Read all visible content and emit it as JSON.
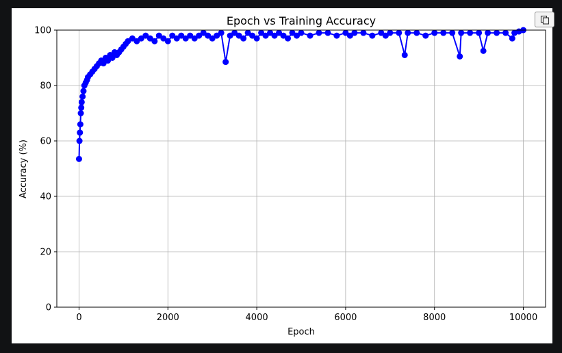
{
  "colors": {
    "series": "#0000ff",
    "grid": "#b0b0b0",
    "page_background": "#111214",
    "figure_background": "#ffffff"
  },
  "toolbar": {
    "copy_icon": "copy-icon"
  },
  "chart_data": {
    "type": "line",
    "title": "Epoch vs Training Accuracy",
    "xlabel": "Epoch",
    "ylabel": "Accuracy (%)",
    "xlim": [
      -500,
      10500
    ],
    "ylim": [
      0,
      100
    ],
    "xticks": [
      0,
      2000,
      4000,
      6000,
      8000,
      10000
    ],
    "yticks": [
      0,
      20,
      40,
      60,
      80,
      100
    ],
    "grid": true,
    "marker": "circle",
    "series": [
      {
        "name": "",
        "x": [
          0,
          10,
          20,
          30,
          40,
          50,
          60,
          80,
          100,
          120,
          150,
          180,
          200,
          250,
          300,
          350,
          400,
          450,
          500,
          550,
          600,
          650,
          700,
          750,
          800,
          850,
          900,
          950,
          1000,
          1050,
          1100,
          1200,
          1300,
          1400,
          1500,
          1600,
          1700,
          1800,
          1900,
          2000,
          2100,
          2200,
          2300,
          2400,
          2500,
          2600,
          2700,
          2800,
          2900,
          3000,
          3100,
          3200,
          3300,
          3400,
          3500,
          3600,
          3700,
          3800,
          3900,
          4000,
          4100,
          4200,
          4300,
          4400,
          4500,
          4600,
          4700,
          4800,
          4900,
          5000,
          5200,
          5400,
          5600,
          5800,
          6000,
          6100,
          6200,
          6400,
          6600,
          6800,
          6900,
          7000,
          7200,
          7330,
          7400,
          7600,
          7800,
          8000,
          8200,
          8400,
          8570,
          8600,
          8800,
          9000,
          9100,
          9200,
          9400,
          9600,
          9750,
          9800,
          9900,
          10000
        ],
        "y": [
          53.5,
          60,
          63,
          66,
          70,
          72,
          74,
          76,
          78,
          80,
          81,
          82,
          83,
          84,
          85,
          86,
          87,
          88,
          89,
          88,
          90,
          89,
          91,
          90,
          92,
          91,
          92,
          93,
          94,
          95,
          96,
          97,
          96,
          97,
          98,
          97,
          96,
          98,
          97,
          96,
          98,
          97,
          98,
          97,
          98,
          97,
          98,
          99,
          98,
          97,
          98,
          99,
          88.5,
          98,
          99,
          98,
          97,
          99,
          98,
          97,
          99,
          98,
          99,
          98,
          99,
          98,
          97,
          99,
          98,
          99,
          98,
          99,
          99,
          98,
          99,
          98,
          99,
          99,
          98,
          99,
          98,
          99,
          99,
          91,
          99,
          99,
          98,
          99,
          99,
          99,
          90.5,
          99,
          99,
          99,
          92.5,
          99,
          99,
          99,
          97,
          99,
          99.5,
          100
        ]
      }
    ]
  }
}
